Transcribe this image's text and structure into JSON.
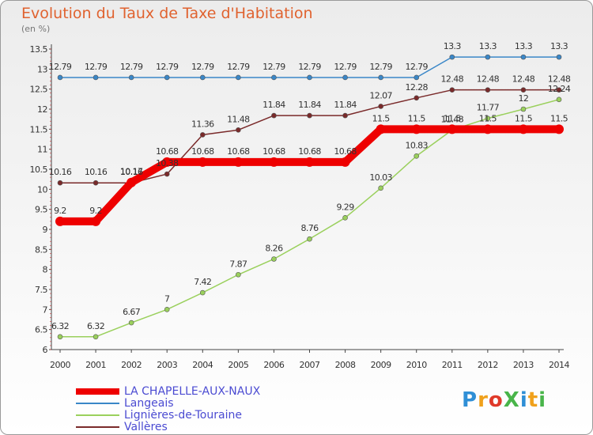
{
  "header": {
    "title": "Evolution du Taux de Taxe d'Habitation",
    "unit": "(en %)"
  },
  "logo": {
    "text": "ProXiti",
    "colors": [
      "#2f8fd6",
      "#f0a11c",
      "#e03a2a",
      "#49b54a",
      "#2f8fd6",
      "#f0a11c",
      "#49b54a"
    ]
  },
  "chart_data": {
    "type": "line",
    "title": "Evolution du Taux de Taxe d'Habitation",
    "ylabel": "(en %)",
    "xlabel": "",
    "ylim": [
      6,
      13.5
    ],
    "y_ticks": [
      "6",
      "6.5",
      "7",
      "7.5",
      "8",
      "8.5",
      "9",
      "9.5",
      "10",
      "10.5",
      "11",
      "11.5",
      "12",
      "12.5",
      "13",
      "13.5"
    ],
    "x": [
      "2000",
      "2001",
      "2002",
      "2003",
      "2004",
      "2005",
      "2006",
      "2007",
      "2008",
      "2009",
      "2010",
      "2011",
      "2012",
      "2013",
      "2014"
    ],
    "grid": false,
    "legend_position": "bottom-left",
    "series": [
      {
        "name": "LA CHAPELLE-AUX-NAUX",
        "color": "#ee0000",
        "width": "thick",
        "values": [
          9.2,
          9.2,
          10.17,
          10.68,
          10.68,
          10.68,
          10.68,
          10.68,
          10.68,
          11.5,
          11.5,
          11.5,
          11.5,
          11.5,
          11.5
        ],
        "labels": [
          "9.2",
          "9.2",
          "10.17",
          "10.68",
          "10.68",
          "10.68",
          "10.68",
          "10.68",
          "10.68",
          "11.5",
          "11.5",
          "11.5",
          "11.5",
          "11.5",
          "11.5"
        ]
      },
      {
        "name": "Langeais",
        "color": "#3a87c8",
        "width": "thin",
        "values": [
          12.79,
          12.79,
          12.79,
          12.79,
          12.79,
          12.79,
          12.79,
          12.79,
          12.79,
          12.79,
          12.79,
          13.3,
          13.3,
          13.3,
          13.3
        ],
        "labels": [
          "12.79",
          "12.79",
          "12.79",
          "12.79",
          "12.79",
          "12.79",
          "12.79",
          "12.79",
          "12.79",
          "12.79",
          "12.79",
          "13.3",
          "13.3",
          "13.3",
          "13.3"
        ]
      },
      {
        "name": "Lignières-de-Touraine",
        "color": "#9ad05c",
        "width": "thin",
        "values": [
          6.32,
          6.32,
          6.67,
          7,
          7.42,
          7.87,
          8.26,
          8.76,
          9.29,
          10.03,
          10.83,
          11.48,
          11.77,
          12,
          12.24
        ],
        "labels": [
          "6.32",
          "6.32",
          "6.67",
          "7",
          "7.42",
          "7.87",
          "8.26",
          "8.76",
          "9.29",
          "10.03",
          "10.83",
          "11.48",
          "11.77",
          "12",
          "12.24"
        ]
      },
      {
        "name": "Vallères",
        "color": "#7a2a2a",
        "width": "thin",
        "values": [
          10.16,
          10.16,
          10.16,
          10.38,
          11.36,
          11.48,
          11.84,
          11.84,
          11.84,
          12.07,
          12.28,
          12.48,
          12.48,
          12.48,
          12.48
        ],
        "labels": [
          "10.16",
          "10.16",
          "10.16",
          "10.38",
          "11.36",
          "11.48",
          "11.84",
          "11.84",
          "11.84",
          "12.07",
          "12.28",
          "12.48",
          "12.48",
          "12.48",
          "12.48"
        ]
      }
    ]
  }
}
